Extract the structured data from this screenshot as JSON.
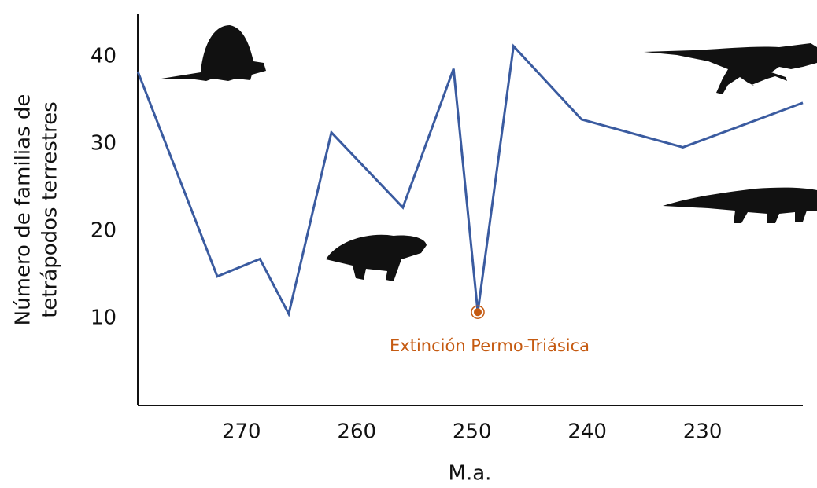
{
  "chart_data": {
    "type": "line",
    "xlabel": "M.a.",
    "ylabel": [
      "Número de familias de",
      "tetrápodos terrestres"
    ],
    "x": [
      279,
      272.1,
      268.4,
      265.9,
      262.2,
      256.0,
      251.6,
      249.5,
      246.4,
      240.5,
      231.7,
      221.3
    ],
    "series": [
      {
        "color": "#3a5ba0",
        "values": [
          38.3,
          14.8,
          16.8,
          10.5,
          31.3,
          22.7,
          38.6,
          10.7,
          41.2,
          32.8,
          29.6,
          34.7
        ]
      }
    ],
    "xlim": [
      279,
      221.3
    ],
    "xticks": [
      270,
      260,
      250,
      240,
      230
    ],
    "ylim": [
      0,
      45
    ],
    "yticks": [
      10,
      20,
      30,
      40
    ],
    "annotation": {
      "text": "Extinción Permo-Triásica",
      "x": 249.5,
      "y": 10.7,
      "color": "#c55a11"
    }
  }
}
